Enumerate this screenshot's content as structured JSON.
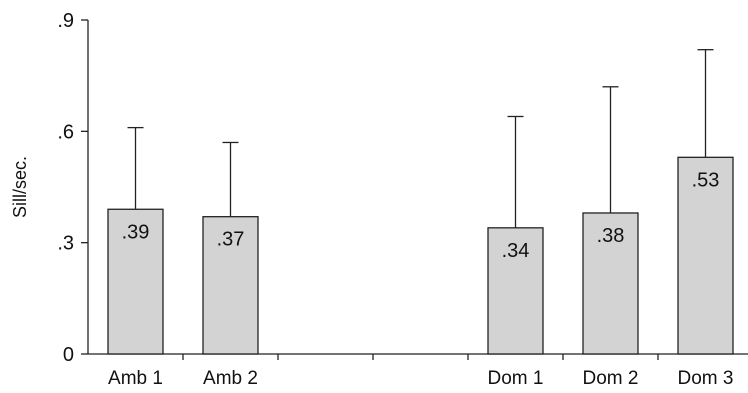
{
  "chart_data": {
    "type": "bar",
    "categories": [
      "Amb 1",
      "Amb 2",
      "",
      "",
      "Dom 1",
      "Dom 2",
      "Dom 3"
    ],
    "values": [
      0.39,
      0.37,
      null,
      null,
      0.34,
      0.38,
      0.53
    ],
    "value_labels": [
      ".39",
      ".37",
      "",
      "",
      ".34",
      ".38",
      ".53"
    ],
    "error_upper": [
      0.61,
      0.57,
      null,
      null,
      0.64,
      0.72,
      0.82
    ],
    "ylabel": "Sill/sec.",
    "xlabel": "",
    "title": "",
    "ylim": [
      0,
      0.9
    ],
    "yticks": [
      0,
      0.3,
      0.6,
      0.9
    ],
    "ytick_labels": [
      "0",
      ".3",
      ".6",
      ".9"
    ],
    "bar_color": "#d3d3d3",
    "bar_edge_color": "#222222",
    "grid": false,
    "legend": "none"
  }
}
